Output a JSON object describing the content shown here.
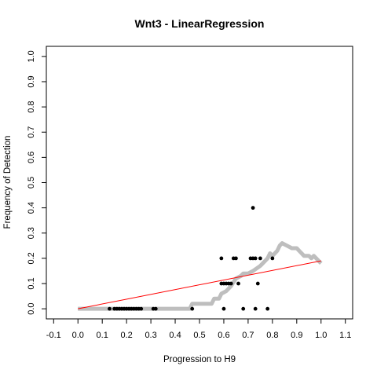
{
  "chart_data": {
    "type": "scatter",
    "title": "Wnt3 - LinearRegression",
    "xlabel": "Progression to H9",
    "ylabel": "Frequency of Detection",
    "xlim": [
      -0.13,
      1.13
    ],
    "ylim": [
      -0.04,
      1.04
    ],
    "xticks": [
      -0.1,
      0,
      0.1,
      0.2,
      0.3,
      0.4,
      0.5,
      0.6,
      0.7,
      0.8,
      0.9,
      1,
      1.1
    ],
    "xtick_labels": [
      "-0.1",
      "0.0",
      "0.1",
      "0.2",
      "0.3",
      "0.4",
      "0.5",
      "0.6",
      "0.7",
      "0.8",
      "0.9",
      "1.0",
      "1.1"
    ],
    "yticks": [
      0,
      0.1,
      0.2,
      0.3,
      0.4,
      0.5,
      0.6,
      0.7,
      0.8,
      0.9,
      1
    ],
    "ytick_labels": [
      "0.0",
      "0.1",
      "0.2",
      "0.3",
      "0.4",
      "0.5",
      "0.6",
      "0.7",
      "0.8",
      "0.9",
      "1.0"
    ],
    "grid": false,
    "legend": "none",
    "colors": {
      "observed": "#000000",
      "smoothed": "#bebebe",
      "regression": "#ff0000"
    },
    "observed_points": [
      [
        0.13,
        0
      ],
      [
        0.15,
        0
      ],
      [
        0.16,
        0
      ],
      [
        0.17,
        0
      ],
      [
        0.18,
        0
      ],
      [
        0.19,
        0
      ],
      [
        0.2,
        0
      ],
      [
        0.21,
        0
      ],
      [
        0.22,
        0
      ],
      [
        0.23,
        0
      ],
      [
        0.24,
        0
      ],
      [
        0.25,
        0
      ],
      [
        0.26,
        0
      ],
      [
        0.31,
        0
      ],
      [
        0.32,
        0
      ],
      [
        0.47,
        0
      ],
      [
        0.59,
        0.2
      ],
      [
        0.59,
        0.1
      ],
      [
        0.6,
        0.1
      ],
      [
        0.6,
        0
      ],
      [
        0.61,
        0.1
      ],
      [
        0.62,
        0.1
      ],
      [
        0.63,
        0.1
      ],
      [
        0.64,
        0.2
      ],
      [
        0.65,
        0.2
      ],
      [
        0.66,
        0.1
      ],
      [
        0.68,
        0
      ],
      [
        0.71,
        0.2
      ],
      [
        0.72,
        0.4
      ],
      [
        0.72,
        0.2
      ],
      [
        0.73,
        0
      ],
      [
        0.73,
        0.2
      ],
      [
        0.74,
        0.1
      ],
      [
        0.75,
        0.2
      ],
      [
        0.78,
        0
      ],
      [
        0.8,
        0.2
      ]
    ],
    "smoothed_curve": [
      [
        0.0,
        0
      ],
      [
        0.1,
        0
      ],
      [
        0.2,
        0
      ],
      [
        0.3,
        0
      ],
      [
        0.46,
        0
      ],
      [
        0.47,
        0.02
      ],
      [
        0.55,
        0.02
      ],
      [
        0.56,
        0.04
      ],
      [
        0.58,
        0.04
      ],
      [
        0.59,
        0.06
      ],
      [
        0.61,
        0.07
      ],
      [
        0.63,
        0.09
      ],
      [
        0.65,
        0.12
      ],
      [
        0.67,
        0.13
      ],
      [
        0.68,
        0.14
      ],
      [
        0.7,
        0.14
      ],
      [
        0.72,
        0.15
      ],
      [
        0.75,
        0.17
      ],
      [
        0.77,
        0.19
      ],
      [
        0.78,
        0.2
      ],
      [
        0.79,
        0.22
      ],
      [
        0.8,
        0.21
      ],
      [
        0.81,
        0.22
      ],
      [
        0.82,
        0.23
      ],
      [
        0.83,
        0.25
      ],
      [
        0.84,
        0.26
      ],
      [
        0.86,
        0.25
      ],
      [
        0.88,
        0.24
      ],
      [
        0.9,
        0.24
      ],
      [
        0.91,
        0.23
      ],
      [
        0.93,
        0.21
      ],
      [
        0.95,
        0.21
      ],
      [
        0.96,
        0.2
      ],
      [
        0.97,
        0.21
      ],
      [
        0.98,
        0.2
      ],
      [
        0.99,
        0.19
      ],
      [
        1.0,
        0.18
      ]
    ],
    "regression_line": {
      "x": [
        0.0,
        1.0
      ],
      "y": [
        0.0,
        0.19
      ]
    }
  }
}
